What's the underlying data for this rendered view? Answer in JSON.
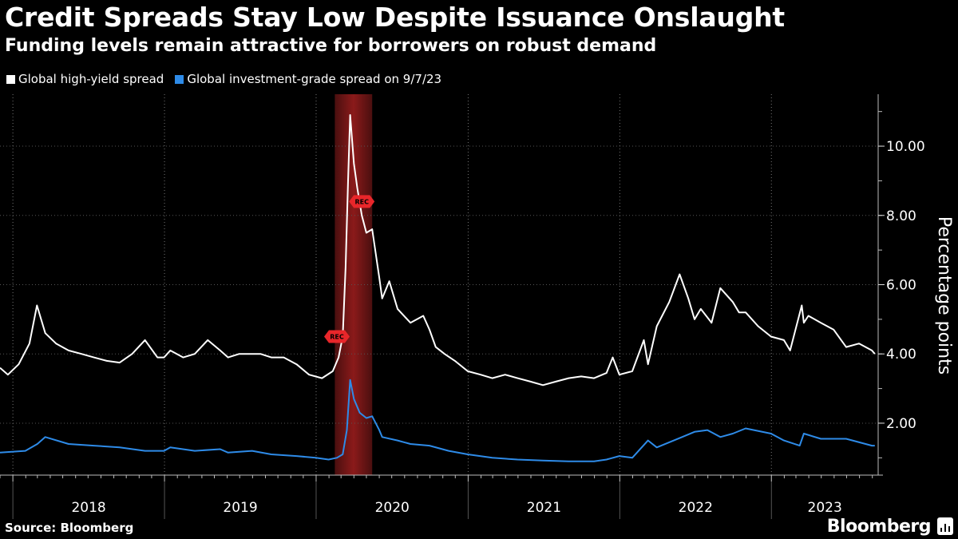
{
  "header": {
    "title": "Credit Spreads Stay Low Despite Issuance Onslaught",
    "subtitle": "Funding levels remain attractive for borrowers on robust demand"
  },
  "footer": {
    "source": "Source: Bloomberg",
    "brand": "Bloomberg"
  },
  "chart_data": {
    "type": "line",
    "y_axis_title": "Percentage points",
    "ylim": [
      0.5,
      11.5
    ],
    "y_ticks": [
      2.0,
      4.0,
      6.0,
      8.0,
      10.0
    ],
    "y_tick_labels": [
      "2.00",
      "4.00",
      "6.00",
      "8.00",
      "10.00"
    ],
    "x_range": [
      "2017-12-01",
      "2023-09-15"
    ],
    "x_year_labels": [
      "2018",
      "2019",
      "2020",
      "2021",
      "2022",
      "2023"
    ],
    "grid": "vertical dotted",
    "legend_position": "top-left",
    "shaded_period": {
      "start": "2020-02-15",
      "end": "2020-05-15",
      "color": "#8b1a1a"
    },
    "rec_markers": [
      {
        "label": "REC",
        "date": "2020-02-20",
        "value": 4.5
      },
      {
        "label": "REC",
        "date": "2020-04-20",
        "value": 8.4
      }
    ],
    "series": [
      {
        "name": "Global high-yield spread",
        "color": "#ffffff",
        "x": [
          "2017-12-01",
          "2017-12-20",
          "2018-01-15",
          "2018-02-10",
          "2018-02-28",
          "2018-03-20",
          "2018-04-15",
          "2018-05-15",
          "2018-06-15",
          "2018-07-15",
          "2018-08-15",
          "2018-09-15",
          "2018-10-15",
          "2018-11-15",
          "2018-12-15",
          "2018-12-31",
          "2019-01-15",
          "2019-02-15",
          "2019-03-15",
          "2019-04-15",
          "2019-05-15",
          "2019-06-03",
          "2019-06-30",
          "2019-07-31",
          "2019-08-20",
          "2019-09-15",
          "2019-10-15",
          "2019-11-15",
          "2019-12-15",
          "2020-01-15",
          "2020-02-10",
          "2020-02-24",
          "2020-03-05",
          "2020-03-12",
          "2020-03-18",
          "2020-03-23",
          "2020-04-01",
          "2020-04-09",
          "2020-04-20",
          "2020-05-01",
          "2020-05-15",
          "2020-06-01",
          "2020-06-08",
          "2020-06-25",
          "2020-07-15",
          "2020-08-15",
          "2020-09-15",
          "2020-09-30",
          "2020-10-15",
          "2020-11-05",
          "2020-11-30",
          "2020-12-31",
          "2021-01-31",
          "2021-02-28",
          "2021-03-31",
          "2021-04-30",
          "2021-05-31",
          "2021-06-30",
          "2021-07-31",
          "2021-08-31",
          "2021-09-30",
          "2021-10-31",
          "2021-11-30",
          "2021-12-15",
          "2021-12-31",
          "2022-01-31",
          "2022-02-28",
          "2022-03-10",
          "2022-03-31",
          "2022-04-30",
          "2022-05-25",
          "2022-06-15",
          "2022-06-30",
          "2022-07-15",
          "2022-08-10",
          "2022-08-31",
          "2022-09-30",
          "2022-10-15",
          "2022-10-31",
          "2022-11-30",
          "2022-12-31",
          "2023-01-31",
          "2023-02-15",
          "2023-03-15",
          "2023-03-20",
          "2023-03-31",
          "2023-04-30",
          "2023-05-31",
          "2023-06-30",
          "2023-07-31",
          "2023-08-31",
          "2023-09-07"
        ],
        "values": [
          3.6,
          3.4,
          3.7,
          4.3,
          5.4,
          4.6,
          4.3,
          4.1,
          4.0,
          3.9,
          3.8,
          3.75,
          4.0,
          4.4,
          3.9,
          3.9,
          4.1,
          3.9,
          4.0,
          4.4,
          4.1,
          3.9,
          4.0,
          4.0,
          4.0,
          3.9,
          3.9,
          3.7,
          3.4,
          3.3,
          3.5,
          3.9,
          4.5,
          6.5,
          9.0,
          10.9,
          9.5,
          8.8,
          8.0,
          7.5,
          7.6,
          6.2,
          5.6,
          6.1,
          5.3,
          4.9,
          5.1,
          4.7,
          4.2,
          4.0,
          3.8,
          3.5,
          3.4,
          3.3,
          3.4,
          3.3,
          3.2,
          3.1,
          3.2,
          3.3,
          3.35,
          3.3,
          3.45,
          3.9,
          3.4,
          3.5,
          4.4,
          3.7,
          4.8,
          5.5,
          6.3,
          5.6,
          5.0,
          5.3,
          4.9,
          5.9,
          5.5,
          5.2,
          5.2,
          4.8,
          4.5,
          4.4,
          4.1,
          5.4,
          4.9,
          5.1,
          4.9,
          4.7,
          4.2,
          4.3,
          4.1,
          4.0
        ]
      },
      {
        "name": "Global investment-grade spread on 9/7/23",
        "color": "#2e8be8",
        "x": [
          "2017-12-01",
          "2018-01-31",
          "2018-03-01",
          "2018-03-20",
          "2018-05-15",
          "2018-07-15",
          "2018-09-15",
          "2018-11-15",
          "2018-12-31",
          "2019-01-15",
          "2019-03-15",
          "2019-05-15",
          "2019-06-03",
          "2019-07-31",
          "2019-09-15",
          "2019-11-15",
          "2019-12-31",
          "2020-01-31",
          "2020-02-20",
          "2020-03-05",
          "2020-03-15",
          "2020-03-23",
          "2020-04-01",
          "2020-04-15",
          "2020-05-01",
          "2020-05-15",
          "2020-06-01",
          "2020-06-08",
          "2020-07-15",
          "2020-08-15",
          "2020-09-30",
          "2020-11-15",
          "2020-12-31",
          "2021-02-28",
          "2021-04-30",
          "2021-06-30",
          "2021-08-31",
          "2021-10-31",
          "2021-11-30",
          "2021-12-31",
          "2022-01-31",
          "2022-03-10",
          "2022-03-31",
          "2022-05-31",
          "2022-06-30",
          "2022-07-31",
          "2022-08-31",
          "2022-09-30",
          "2022-10-31",
          "2022-12-31",
          "2023-01-31",
          "2023-03-10",
          "2023-03-20",
          "2023-04-30",
          "2023-06-30",
          "2023-08-31",
          "2023-09-07"
        ],
        "values": [
          1.15,
          1.2,
          1.4,
          1.6,
          1.4,
          1.35,
          1.3,
          1.2,
          1.2,
          1.3,
          1.2,
          1.25,
          1.15,
          1.2,
          1.1,
          1.05,
          1.0,
          0.95,
          1.0,
          1.1,
          1.8,
          3.25,
          2.7,
          2.3,
          2.15,
          2.2,
          1.8,
          1.6,
          1.5,
          1.4,
          1.35,
          1.2,
          1.1,
          1.0,
          0.95,
          0.92,
          0.9,
          0.9,
          0.95,
          1.05,
          1.0,
          1.5,
          1.3,
          1.6,
          1.75,
          1.8,
          1.6,
          1.7,
          1.85,
          1.7,
          1.5,
          1.35,
          1.7,
          1.55,
          1.55,
          1.35,
          1.35
        ]
      }
    ]
  }
}
